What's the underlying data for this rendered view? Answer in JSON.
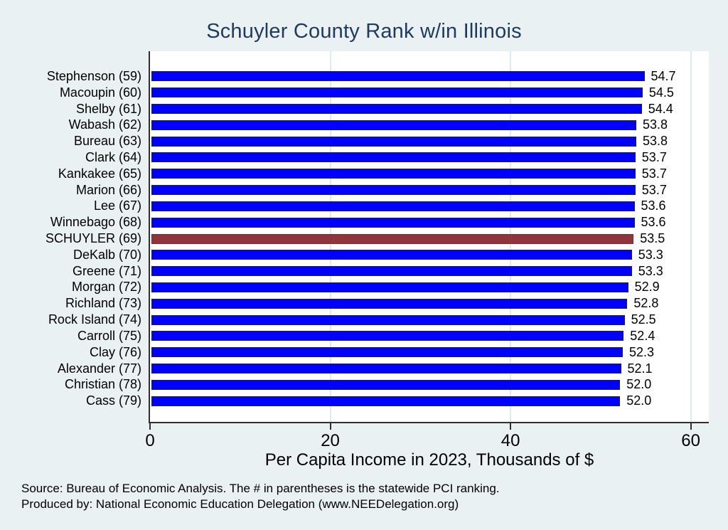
{
  "page": {
    "background_color": "#e9f1f3",
    "title_color": "#1f3a5f"
  },
  "chart_data": {
    "type": "bar",
    "orientation": "horizontal",
    "title": "Schuyler County Rank w/in Illinois",
    "xlabel": "Per Capita Income in 2023, Thousands of $",
    "ylabel": "",
    "xlim": [
      0,
      62
    ],
    "xticks": [
      0,
      20,
      40,
      60
    ],
    "grid": "vertical gridlines at 20, 40, 60",
    "legend": "none",
    "bar_color": "#0000ff",
    "highlight_color": "#90353b",
    "highlight_index": 10,
    "categories": [
      "Stephenson (59)",
      "Macoupin (60)",
      "Shelby (61)",
      "Wabash (62)",
      "Bureau (63)",
      "Clark (64)",
      "Kankakee (65)",
      "Marion (66)",
      "Lee (67)",
      "Winnebago (68)",
      "SCHUYLER (69)",
      "DeKalb (70)",
      "Greene (71)",
      "Morgan (72)",
      "Richland (73)",
      "Rock Island (74)",
      "Carroll (75)",
      "Clay (76)",
      "Alexander (77)",
      "Christian (78)",
      "Cass (79)"
    ],
    "values": [
      54.7,
      54.5,
      54.4,
      53.8,
      53.8,
      53.7,
      53.7,
      53.7,
      53.6,
      53.6,
      53.5,
      53.3,
      53.3,
      52.9,
      52.8,
      52.5,
      52.4,
      52.3,
      52.1,
      52.0,
      52.0
    ],
    "value_labels": [
      "54.7",
      "54.5",
      "54.4",
      "53.8",
      "53.8",
      "53.7",
      "53.7",
      "53.7",
      "53.6",
      "53.6",
      "53.5",
      "53.3",
      "53.3",
      "52.9",
      "52.8",
      "52.5",
      "52.4",
      "52.3",
      "52.1",
      "52.0",
      "52.0"
    ]
  },
  "footer": {
    "source_line1": "Source: Bureau of Economic Analysis. The # in parentheses is the statewide PCI ranking.",
    "source_line2": "Produced by: National Economic Education Delegation (www.NEEDelegation.org)"
  }
}
